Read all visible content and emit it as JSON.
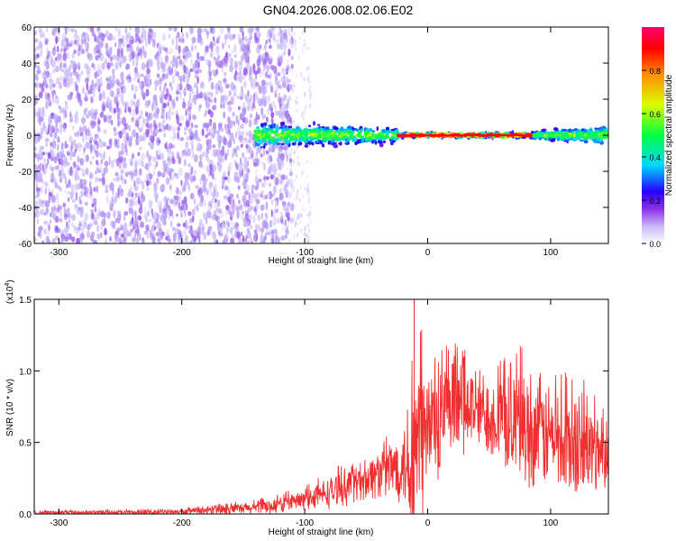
{
  "title": "GN04.2026.008.02.06.E02",
  "chart_data": [
    {
      "type": "heatmap",
      "xlabel": "Height of straight line (km)",
      "ylabel": "Frequency (Hz)",
      "xlim": [
        -320,
        147
      ],
      "ylim": [
        -60,
        60
      ],
      "x_ticks": [
        -300,
        -200,
        -100,
        0,
        100
      ],
      "x_tick_labels": [
        "-300",
        "-200",
        "-100",
        "0",
        "100"
      ],
      "y_ticks": [
        60,
        40,
        20,
        0,
        -20,
        -40,
        -60
      ],
      "y_tick_labels": [
        "60",
        "40",
        "20",
        "0",
        "-20",
        "-40",
        "-60"
      ],
      "colorbar": {
        "label": "Normalized spectral amplitude",
        "range": [
          0.0,
          1.0
        ],
        "ticks": [
          0.0,
          0.2,
          0.4,
          0.6,
          0.8
        ],
        "tick_labels": [
          "0.0",
          "0.2",
          "0.4",
          "0.6",
          "0.8"
        ],
        "colors": [
          "#ffffff",
          "#b8a6f5",
          "#8020e0",
          "#1f00ff",
          "#00d0ff",
          "#00ff40",
          "#ffff00",
          "#ff8000",
          "#ff0000",
          "#ff0080"
        ]
      },
      "regions": [
        {
          "x_range": [
            -320,
            -110
          ],
          "freq_range": [
            -60,
            60
          ],
          "amplitude": 0.05,
          "description": "broadband low-amplitude scatter"
        },
        {
          "x_range": [
            -140,
            -25
          ],
          "freq_range": [
            -12,
            12
          ],
          "amplitude": 0.35
        },
        {
          "x_range": [
            -25,
            85
          ],
          "freq_range": [
            -2,
            2
          ],
          "amplitude": 0.9
        },
        {
          "x_range": [
            85,
            147
          ],
          "freq_range": [
            -10,
            10
          ],
          "amplitude": 0.35
        }
      ],
      "grid": false
    },
    {
      "type": "line",
      "xlabel": "Height of straight line (km)",
      "ylabel": "SNR (10 * v/v)",
      "y_multiplier": "(x10",
      "y_multiplier_exp": "4",
      "y_multiplier_close": ")",
      "xlim": [
        -320,
        147
      ],
      "ylim": [
        0,
        1.5
      ],
      "x_ticks": [
        -300,
        -200,
        -100,
        0,
        100
      ],
      "x_tick_labels": [
        "-300",
        "-200",
        "-100",
        "0",
        "100"
      ],
      "y_ticks": [
        0.0,
        0.5,
        1.0,
        1.5
      ],
      "y_tick_labels": [
        "0.0",
        "0.5",
        "1.0",
        "1.5"
      ],
      "color": "#f03030",
      "envelope": {
        "x": [
          -320,
          -250,
          -200,
          -160,
          -130,
          -100,
          -80,
          -50,
          -20,
          -10,
          0,
          30,
          50,
          80,
          100,
          120,
          147
        ],
        "y_mean": [
          0.01,
          0.01,
          0.015,
          0.03,
          0.05,
          0.1,
          0.15,
          0.25,
          0.35,
          0.4,
          0.6,
          0.75,
          0.7,
          0.6,
          0.55,
          0.45,
          0.45
        ],
        "y_peak": [
          0.03,
          0.03,
          0.04,
          0.08,
          0.12,
          0.2,
          0.3,
          0.45,
          0.7,
          1.5,
          1.25,
          1.18,
          1.1,
          1.2,
          1.05,
          1.0,
          0.8
        ]
      },
      "grid": false
    }
  ]
}
